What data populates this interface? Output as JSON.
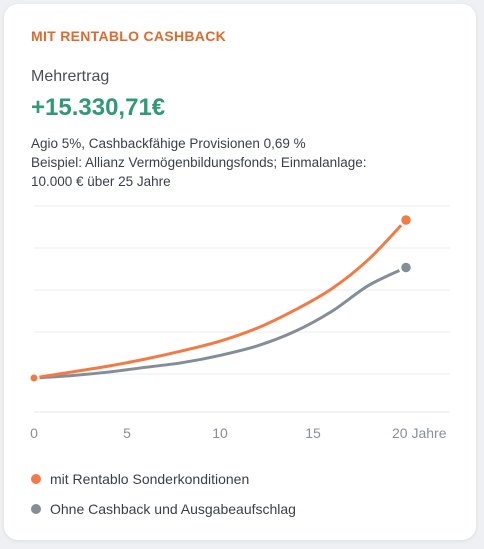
{
  "card": {
    "eyebrow": "MIT RENTABLO CASHBACK",
    "label": "Mehrertrag",
    "amount": "+15.330,71€",
    "desc_line1": "Agio 5%, Cashbackfähige Provisionen 0,69 %",
    "desc_line2": "Beispiel: Allianz Vermögenbildungsfonds; Einmalanlage:",
    "desc_line3": "10.000 € über 25 Jahre"
  },
  "colors": {
    "accent": "#e06a2e",
    "amount": "#2f9a74",
    "series_cashback": "#f37a45",
    "series_plain": "#858d99",
    "grid": "#eceef1",
    "tick": "#8a9099"
  },
  "chart_data": {
    "type": "line",
    "x_ticks": [
      "0",
      "5",
      "10",
      "15",
      "20 Jahre"
    ],
    "x": [
      0,
      2,
      4,
      6,
      8,
      10,
      12,
      14,
      16,
      18,
      20
    ],
    "xlim": [
      0,
      20
    ],
    "grid": true,
    "series": [
      {
        "name": "mit Rentablo Sonderkonditionen",
        "color": "#f37a45",
        "values": [
          0.0,
          0.05,
          0.1,
          0.16,
          0.23,
          0.31,
          0.42,
          0.57,
          0.75,
          1.0,
          1.33
        ]
      },
      {
        "name": "Ohne Cashback und Ausgabeaufschlag",
        "color": "#858d99",
        "values": [
          0.0,
          0.02,
          0.05,
          0.09,
          0.13,
          0.19,
          0.27,
          0.39,
          0.56,
          0.78,
          0.93
        ]
      }
    ]
  },
  "legend": [
    {
      "label": "mit Rentablo Sonderkonditionen",
      "color": "#f37a45"
    },
    {
      "label": "Ohne Cashback und Ausgabeaufschlag",
      "color": "#858d99"
    }
  ]
}
